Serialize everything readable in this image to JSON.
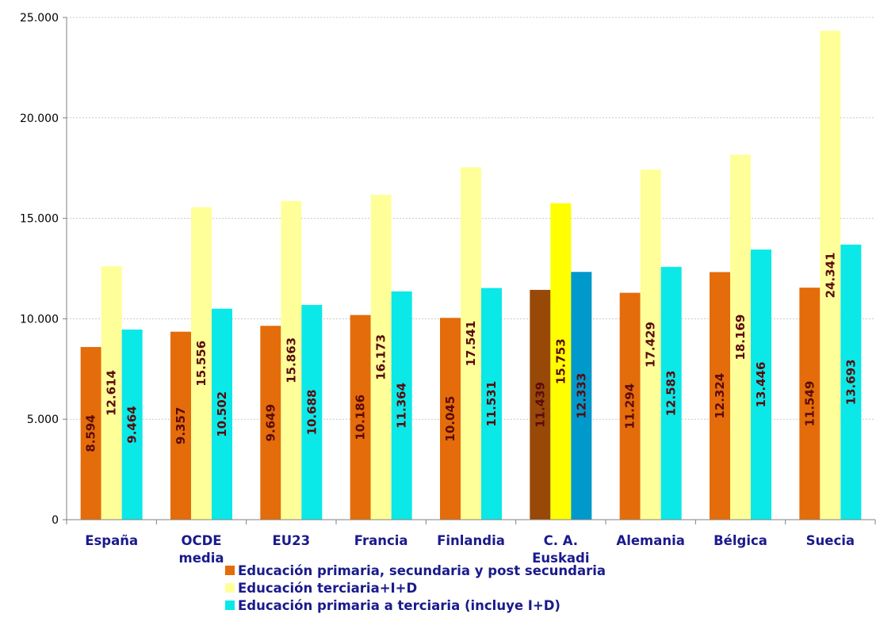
{
  "chart_data": {
    "type": "bar",
    "title": "",
    "xlabel": "",
    "ylabel": "",
    "ylim": [
      0,
      25000
    ],
    "yticks": [
      "0",
      "5.000",
      "10.000",
      "15.000",
      "20.000",
      "25.000"
    ],
    "ytick_values": [
      0,
      5000,
      10000,
      15000,
      20000,
      25000
    ],
    "grid": true,
    "legend_position": "bottom",
    "categories": [
      [
        "España"
      ],
      [
        "OCDE",
        "media"
      ],
      [
        "EU23"
      ],
      [
        "Francia"
      ],
      [
        "Finlandia"
      ],
      [
        "C. A.",
        "Euskadi"
      ],
      [
        "Alemania"
      ],
      [
        "Bélgica"
      ],
      [
        "Suecia"
      ]
    ],
    "highlight_index": 5,
    "series": [
      {
        "name": "Educación primaria, secundaria y post secundaria",
        "color": "#e46c0a",
        "highlight_color": "#984807",
        "values": [
          8594,
          9357,
          9649,
          10186,
          10045,
          11439,
          11294,
          12324,
          11549
        ],
        "labels": [
          "8.594",
          "9.357",
          "9.649",
          "10.186",
          "10.045",
          "11.439",
          "11.294",
          "12.324",
          "11.549"
        ]
      },
      {
        "name": "Educación terciaria+I+D",
        "color": "#ffff99",
        "highlight_color": "#ffff00",
        "values": [
          12614,
          15556,
          15863,
          16173,
          17541,
          15753,
          17429,
          18169,
          24341
        ],
        "labels": [
          "12.614",
          "15.556",
          "15.863",
          "16.173",
          "17.541",
          "15.753",
          "17.429",
          "18.169",
          "24.341"
        ]
      },
      {
        "name": "Educación primaria a terciaria (incluye I+D)",
        "color": "#0be8e8",
        "highlight_color": "#0099cc",
        "values": [
          9464,
          10502,
          10688,
          11364,
          11531,
          12333,
          12583,
          13446,
          13693
        ],
        "labels": [
          "9.464",
          "10.502",
          "10.688",
          "11.364",
          "11.531",
          "12.333",
          "12.583",
          "13.446",
          "13.693"
        ]
      }
    ]
  }
}
